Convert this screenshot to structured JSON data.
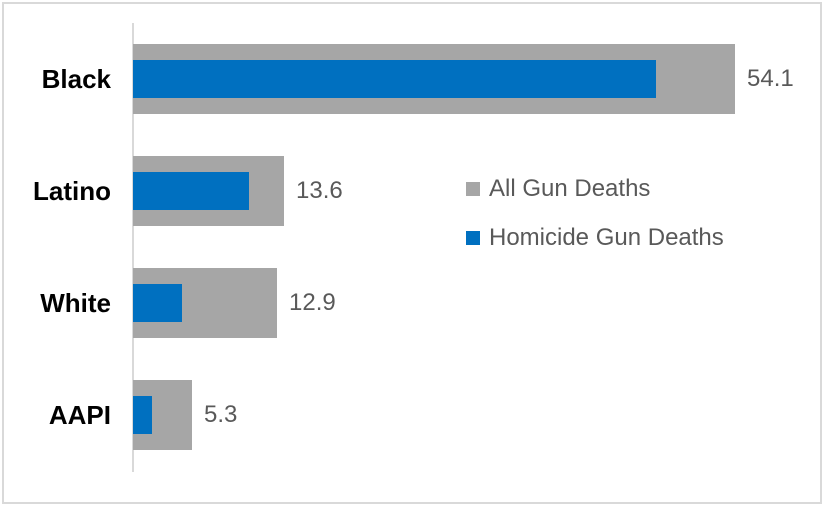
{
  "chart_data": {
    "type": "bar",
    "orientation": "horizontal",
    "title": "",
    "xlabel": "",
    "ylabel": "",
    "categories": [
      "Black",
      "Latino",
      "White",
      "AAPI"
    ],
    "series": [
      {
        "name": "All Gun Deaths",
        "color": "#a6a6a6",
        "values": [
          54.1,
          13.6,
          12.9,
          5.3
        ],
        "data_labels": [
          "54.1",
          "13.6",
          "12.9",
          "5.3"
        ]
      },
      {
        "name": "Homicide Gun Deaths",
        "color": "#0070c0",
        "values": [
          47.0,
          10.4,
          4.4,
          1.7
        ],
        "data_labels": [
          "",
          "",
          "",
          ""
        ],
        "values_note": "estimated from bar pixel lengths; not labeled in chart"
      }
    ],
    "xlim": [
      0,
      54.1
    ],
    "grid": false,
    "legend_position": "center-right",
    "bar_style": "overlay-nested"
  },
  "colors": {
    "axis_line": "#d9d9d9",
    "frame_border": "#d9d9d9",
    "category_label": "#000000",
    "value_label": "#595959",
    "legend_text": "#595959",
    "background": "#ffffff"
  }
}
